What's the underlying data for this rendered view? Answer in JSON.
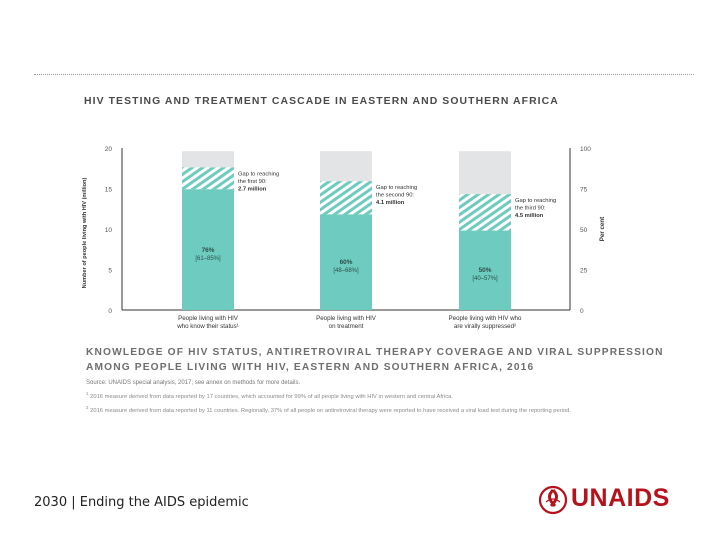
{
  "header": {
    "chart_title": "HIV TESTING AND TREATMENT CASCADE IN EASTERN AND SOUTHERN AFRICA"
  },
  "chart_data": {
    "type": "bar",
    "title": "HIV TESTING AND TREATMENT CASCADE IN EASTERN AND SOUTHERN AFRICA",
    "ylabel_left": "Number of people living with HIV (million)",
    "ylabel_right": "Per cent",
    "ylim": [
      0,
      20
    ],
    "ylim_right": [
      0,
      100
    ],
    "yticks": [
      0,
      5,
      10,
      15,
      20
    ],
    "yticks_right": [
      0,
      25,
      50,
      75,
      100
    ],
    "total_plhiv_million": 19.6,
    "categories": [
      [
        "People living with HIV",
        "who know their status¹"
      ],
      [
        "People living with HIV",
        "on treatment"
      ],
      [
        "People living with HIV who",
        "are virally suppressed²"
      ]
    ],
    "targets_million": [
      17.64,
      15.88,
      14.29
    ],
    "series": [
      {
        "name": "Achieved",
        "color": "#6ecbbf",
        "values": [
          14.9,
          11.8,
          9.8
        ]
      },
      {
        "name": "Gap to target",
        "pattern": "hatched",
        "values": [
          2.7,
          4.1,
          4.5
        ]
      }
    ],
    "value_labels": [
      {
        "pct": "76%",
        "range": "[61–85%]"
      },
      {
        "pct": "60%",
        "range": "[48–68%]"
      },
      {
        "pct": "50%",
        "range": "[40–57%]"
      }
    ],
    "gap_annotations": [
      [
        "Gap to reaching",
        "the first 90:",
        "2.7 million"
      ],
      [
        "Gap to reaching",
        "the second 90:",
        "4.1 million"
      ],
      [
        "Gap to reaching",
        "the third 90:",
        "4.5 million"
      ]
    ]
  },
  "caption": {
    "title": "KNOWLEDGE OF HIV STATUS, ANTIRETROVIRAL THERAPY COVERAGE AND VIRAL SUPPRESSION AMONG PEOPLE LIVING WITH HIV, EASTERN AND SOUTHERN AFRICA, 2016",
    "source": "Source: UNAIDS special analysis, 2017; see annex on methods for more details.",
    "footnote1": "2016 measure derived from data reported by 17 countries, which accounted for 99% of all people living with HIV in western and central Africa.",
    "footnote2": "2016 measure derived from data reported by 11 countries. Regionally, 37% of all people on antiretroviral therapy were reported to have received a viral load test during the reporting period."
  },
  "footer": {
    "label": "2030 | Ending the AIDS epidemic",
    "logo_text": "UNAIDS"
  },
  "colors": {
    "bar_fill": "#6ecbbf",
    "bar_background": "#e3e4e5",
    "hatch": "#6ecbbf",
    "logo_red": "#b5121b"
  }
}
